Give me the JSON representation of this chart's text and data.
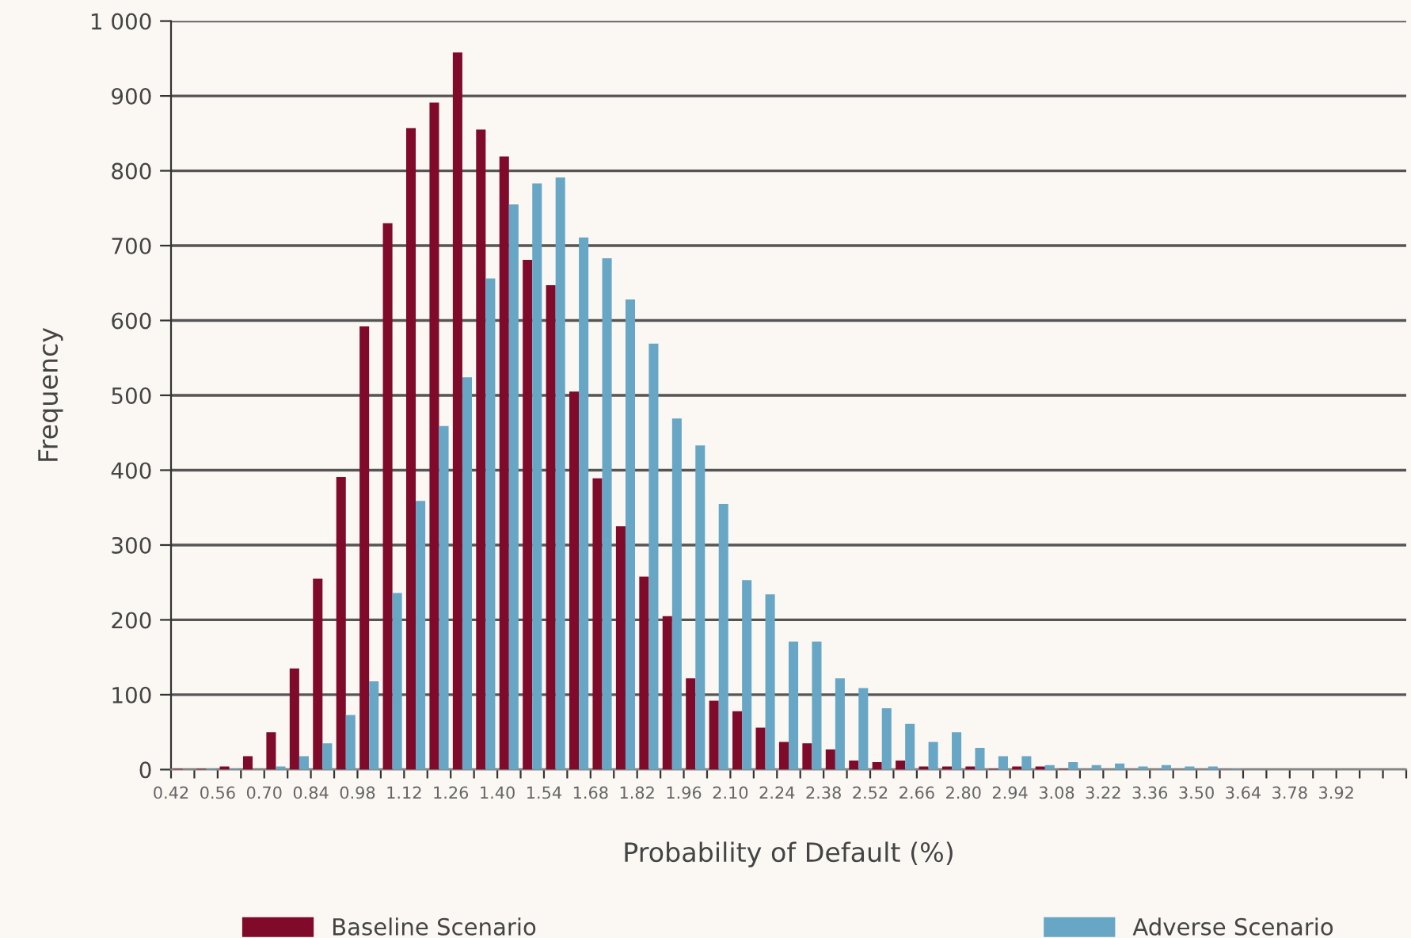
{
  "chart_data": {
    "type": "histogram",
    "xlabel": "Probability of Default (%)",
    "ylabel": "Frequency",
    "bins": [
      0.42,
      0.49,
      0.56,
      0.63,
      0.7,
      0.77,
      0.84,
      0.91,
      0.98,
      1.05,
      1.12,
      1.19,
      1.26,
      1.33,
      1.4,
      1.47,
      1.54,
      1.61,
      1.68,
      1.75,
      1.82,
      1.89,
      1.96,
      2.03,
      2.1,
      2.17,
      2.24,
      2.31,
      2.38,
      2.45,
      2.52,
      2.59,
      2.66,
      2.73,
      2.8,
      2.87,
      2.94,
      3.01,
      3.08,
      3.15,
      3.22,
      3.29,
      3.36,
      3.43,
      3.5,
      3.57,
      3.64,
      3.71,
      3.78,
      3.85,
      3.92,
      3.99,
      4.06,
      4.13
    ],
    "series": [
      {
        "name": "Baseline Scenario",
        "color": "#7f0a2a",
        "values": [
          1,
          1,
          4,
          18,
          50,
          135,
          255,
          391,
          592,
          730,
          857,
          891,
          958,
          855,
          819,
          681,
          647,
          505,
          389,
          325,
          258,
          205,
          122,
          92,
          78,
          56,
          37,
          35,
          27,
          12,
          10,
          12,
          4,
          4,
          4,
          1,
          4,
          4,
          1,
          0,
          0,
          0,
          0,
          0,
          0,
          0,
          0,
          0,
          0,
          0,
          0,
          0,
          0
        ]
      },
      {
        "name": "Adverse Scenario",
        "color": "#68a6c5",
        "values": [
          0,
          1,
          1,
          0,
          4,
          18,
          35,
          73,
          118,
          236,
          359,
          459,
          524,
          656,
          755,
          783,
          791,
          711,
          683,
          628,
          569,
          469,
          433,
          355,
          253,
          234,
          171,
          171,
          122,
          109,
          82,
          61,
          37,
          50,
          29,
          18,
          18,
          6,
          10,
          6,
          8,
          4,
          6,
          4,
          4,
          1,
          0,
          0,
          0,
          0,
          0,
          0,
          0
        ]
      }
    ],
    "xlim": [
      0.42,
      4.13
    ],
    "xticks": [
      {
        "value": 0.42,
        "label": "0.42"
      },
      {
        "value": 0.49,
        "label": null
      },
      {
        "value": 0.56,
        "label": "0.56"
      },
      {
        "value": 0.63,
        "label": null
      },
      {
        "value": 0.7,
        "label": "0.70"
      },
      {
        "value": 0.77,
        "label": null
      },
      {
        "value": 0.84,
        "label": "0.84"
      },
      {
        "value": 0.91,
        "label": null
      },
      {
        "value": 0.98,
        "label": "0.98"
      },
      {
        "value": 1.05,
        "label": null
      },
      {
        "value": 1.12,
        "label": "1.12"
      },
      {
        "value": 1.19,
        "label": null
      },
      {
        "value": 1.26,
        "label": "1.26"
      },
      {
        "value": 1.33,
        "label": null
      },
      {
        "value": 1.4,
        "label": "1.40"
      },
      {
        "value": 1.47,
        "label": null
      },
      {
        "value": 1.54,
        "label": "1.54"
      },
      {
        "value": 1.61,
        "label": null
      },
      {
        "value": 1.68,
        "label": "1.68"
      },
      {
        "value": 1.75,
        "label": null
      },
      {
        "value": 1.82,
        "label": "1.82"
      },
      {
        "value": 1.89,
        "label": null
      },
      {
        "value": 1.96,
        "label": "1.96"
      },
      {
        "value": 2.03,
        "label": null
      },
      {
        "value": 2.1,
        "label": "2.10"
      },
      {
        "value": 2.17,
        "label": null
      },
      {
        "value": 2.24,
        "label": "2.24"
      },
      {
        "value": 2.31,
        "label": null
      },
      {
        "value": 2.38,
        "label": "2.38"
      },
      {
        "value": 2.45,
        "label": null
      },
      {
        "value": 2.52,
        "label": "2.52"
      },
      {
        "value": 2.59,
        "label": null
      },
      {
        "value": 2.66,
        "label": "2.66"
      },
      {
        "value": 2.73,
        "label": null
      },
      {
        "value": 2.8,
        "label": "2.80"
      },
      {
        "value": 2.87,
        "label": null
      },
      {
        "value": 2.94,
        "label": "2.94"
      },
      {
        "value": 3.01,
        "label": null
      },
      {
        "value": 3.08,
        "label": "3.08"
      },
      {
        "value": 3.15,
        "label": null
      },
      {
        "value": 3.22,
        "label": "3.22"
      },
      {
        "value": 3.29,
        "label": null
      },
      {
        "value": 3.36,
        "label": "3.36"
      },
      {
        "value": 3.43,
        "label": null
      },
      {
        "value": 3.5,
        "label": "3.50"
      },
      {
        "value": 3.57,
        "label": null
      },
      {
        "value": 3.64,
        "label": "3.64"
      },
      {
        "value": 3.71,
        "label": null
      },
      {
        "value": 3.78,
        "label": "3.78"
      },
      {
        "value": 3.85,
        "label": null
      },
      {
        "value": 3.92,
        "label": "3.92"
      },
      {
        "value": 3.99,
        "label": null
      },
      {
        "value": 4.06,
        "label": null
      },
      {
        "value": 4.13,
        "label": null
      }
    ],
    "ylim": [
      0,
      1000
    ],
    "yticks": [
      0,
      100,
      200,
      300,
      400,
      500,
      600,
      700,
      800,
      900,
      {
        "value": 1000,
        "label": "1 000"
      }
    ],
    "grid": "y",
    "legend": "bottom"
  }
}
